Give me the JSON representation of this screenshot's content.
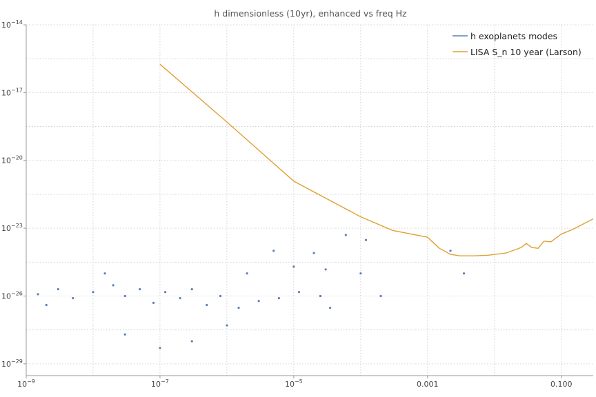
{
  "chart_data": {
    "type": "scatter",
    "title": "h dimensionless (10yr), enhanced vs freq Hz",
    "xlabel": "",
    "ylabel": "",
    "x_scale": "log",
    "y_scale": "log",
    "xlim": [
      1e-09,
      0.3
    ],
    "ylim": [
      3e-30,
      1e-14
    ],
    "grid": true,
    "legend_position": "top-right",
    "x_ticks": [
      {
        "value": 1e-09,
        "base": "10",
        "exp": "−9"
      },
      {
        "value": 1e-07,
        "base": "10",
        "exp": "−7"
      },
      {
        "value": 1e-05,
        "base": "10",
        "exp": "−5"
      },
      {
        "value": 0.001,
        "text": "0.001"
      },
      {
        "value": 0.1,
        "text": "0.100"
      }
    ],
    "y_ticks": [
      {
        "value": 1e-14,
        "base": "10",
        "exp": "−14"
      },
      {
        "value": 1e-17,
        "base": "10",
        "exp": "−17"
      },
      {
        "value": 1e-20,
        "base": "10",
        "exp": "−20"
      },
      {
        "value": 1e-23,
        "base": "10",
        "exp": "−23"
      },
      {
        "value": 1e-26,
        "base": "10",
        "exp": "−26"
      },
      {
        "value": 1e-29,
        "base": "10",
        "exp": "−29"
      }
    ],
    "series": [
      {
        "name": "h exoplanets modes",
        "kind": "scatter",
        "color": "#5b7fb8",
        "points": [
          [
            2e-09,
            4e-27
          ],
          [
            1.5e-09,
            1.2e-26
          ],
          [
            3e-09,
            2e-26
          ],
          [
            5e-09,
            8e-27
          ],
          [
            1e-08,
            1.5e-26
          ],
          [
            2e-08,
            3e-26
          ],
          [
            3e-08,
            1e-26
          ],
          [
            5e-08,
            2e-26
          ],
          [
            8e-08,
            5e-27
          ],
          [
            1.2e-07,
            1.5e-26
          ],
          [
            2e-07,
            8e-27
          ],
          [
            3e-07,
            2e-26
          ],
          [
            5e-07,
            4e-27
          ],
          [
            8e-07,
            1e-26
          ],
          [
            1.5e-06,
            3e-27
          ],
          [
            3e-06,
            6e-27
          ],
          [
            6e-06,
            8e-27
          ],
          [
            1.2e-05,
            1.5e-26
          ],
          [
            2.5e-05,
            1e-26
          ],
          [
            3.5e-05,
            3e-27
          ],
          [
            1e-07,
            5e-29
          ],
          [
            3e-08,
            2e-28
          ],
          [
            3e-07,
            1e-28
          ],
          [
            1e-06,
            5e-28
          ],
          [
            1.5e-08,
            1e-25
          ],
          [
            2e-06,
            1e-25
          ],
          [
            5e-06,
            1e-24
          ],
          [
            1e-05,
            2e-25
          ],
          [
            2e-05,
            8e-25
          ],
          [
            0.0002,
            1e-26
          ],
          [
            6e-05,
            5e-24
          ],
          [
            0.0001,
            1e-25
          ],
          [
            0.0022,
            1e-24
          ],
          [
            0.0035,
            1e-25
          ],
          [
            0.00012,
            3e-24
          ],
          [
            3e-05,
            1.5e-25
          ]
        ]
      },
      {
        "name": "LISA S_n 10 year (Larson)",
        "kind": "line",
        "color": "#e0a030",
        "points": [
          [
            1e-07,
            1.8e-16
          ],
          [
            1e-06,
            5e-19
          ],
          [
            1e-05,
            1.2e-21
          ],
          [
            0.0001,
            3.2e-23
          ],
          [
            0.0003,
            8e-24
          ],
          [
            0.001,
            4e-24
          ],
          [
            0.0015,
            1.3e-24
          ],
          [
            0.0022,
            7e-25
          ],
          [
            0.003,
            6e-25
          ],
          [
            0.005,
            6e-25
          ],
          [
            0.008,
            6.4e-25
          ],
          [
            0.015,
            8e-25
          ],
          [
            0.025,
            1.4e-24
          ],
          [
            0.03,
            2.1e-24
          ],
          [
            0.036,
            1.4e-24
          ],
          [
            0.045,
            1.3e-24
          ],
          [
            0.055,
            2.7e-24
          ],
          [
            0.07,
            2.5e-24
          ],
          [
            0.1,
            5.5e-24
          ],
          [
            0.15,
            9e-24
          ],
          [
            0.3,
            2.6e-23
          ]
        ]
      }
    ]
  }
}
